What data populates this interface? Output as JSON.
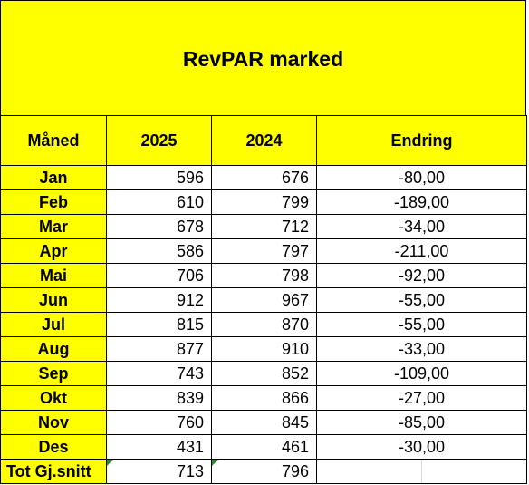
{
  "title": "RevPAR marked",
  "headers": {
    "month": "Måned",
    "year_a": "2025",
    "year_b": "2024",
    "change": "Endring"
  },
  "rows": [
    {
      "month": "Jan",
      "v2025": "596",
      "v2024": "676",
      "change": "-80,00"
    },
    {
      "month": "Feb",
      "v2025": "610",
      "v2024": "799",
      "change": "-189,00"
    },
    {
      "month": "Mar",
      "v2025": "678",
      "v2024": "712",
      "change": "-34,00"
    },
    {
      "month": "Apr",
      "v2025": "586",
      "v2024": "797",
      "change": "-211,00"
    },
    {
      "month": "Mai",
      "v2025": "706",
      "v2024": "798",
      "change": "-92,00"
    },
    {
      "month": "Jun",
      "v2025": "912",
      "v2024": "967",
      "change": "-55,00"
    },
    {
      "month": "Jul",
      "v2025": "815",
      "v2024": "870",
      "change": "-55,00"
    },
    {
      "month": "Aug",
      "v2025": "877",
      "v2024": "910",
      "change": "-33,00"
    },
    {
      "month": "Sep",
      "v2025": "743",
      "v2024": "852",
      "change": "-109,00"
    },
    {
      "month": "Okt",
      "v2025": "839",
      "v2024": "866",
      "change": "-27,00"
    },
    {
      "month": "Nov",
      "v2025": "760",
      "v2024": "845",
      "change": "-85,00"
    },
    {
      "month": "Des",
      "v2025": "431",
      "v2024": "461",
      "change": "-30,00"
    }
  ],
  "total": {
    "label": "Tot Gj.snitt",
    "v2025": "713",
    "v2024": "796",
    "change": ""
  },
  "colors": {
    "highlight": "#ffff00",
    "border": "#000000",
    "marker": "#2e8b2e"
  }
}
